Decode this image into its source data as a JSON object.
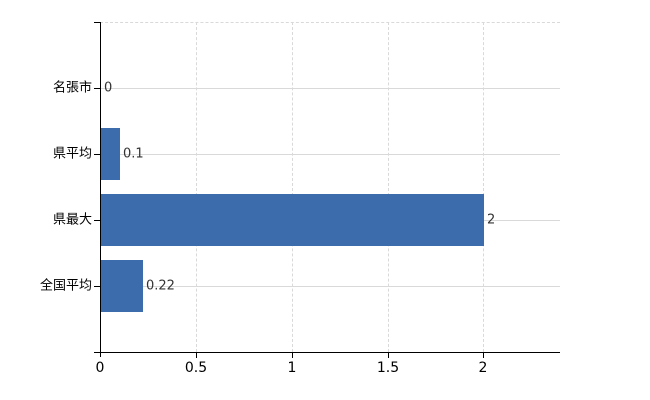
{
  "chart_data": {
    "type": "bar",
    "orientation": "horizontal",
    "categories": [
      "名張市",
      "県平均",
      "県最大",
      "全国平均"
    ],
    "values": [
      0,
      0.1,
      2,
      0.22
    ],
    "value_labels": [
      "0",
      "0.1",
      "2",
      "0.22"
    ],
    "x_ticks": [
      0,
      0.5,
      1,
      1.5,
      2
    ],
    "x_tick_labels": [
      "0",
      "0.5",
      "1",
      "1.5",
      "2"
    ],
    "xlim": [
      0,
      2.4
    ],
    "grid": true,
    "legend": "none",
    "colors": {
      "bar": "#3c6cac",
      "axis": "#000000",
      "gridline": "#d9d9d9",
      "category_text": "#000000",
      "value_text": "#333333",
      "background": "#ffffff"
    }
  }
}
